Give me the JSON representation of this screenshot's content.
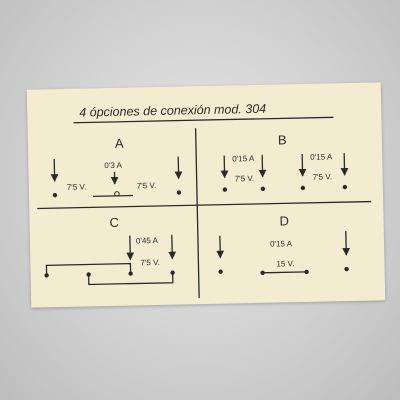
{
  "title": "4 ópciones de conexión mod. 304",
  "sections": {
    "A": {
      "letter": "A",
      "current_label": "0'3 A",
      "voltage_left": "7'5 V.",
      "voltage_right": "7'5 V."
    },
    "B": {
      "letter": "B",
      "current_left": "0'15 A",
      "current_right": "0'15 A",
      "voltage_left": "7'5 V.",
      "voltage_right": "7'5 V."
    },
    "C": {
      "letter": "C",
      "current_label": "0'45 A",
      "voltage_label": "7'5 V."
    },
    "D": {
      "letter": "D",
      "current_label": "0'15 A",
      "voltage_label": "15 V."
    }
  }
}
